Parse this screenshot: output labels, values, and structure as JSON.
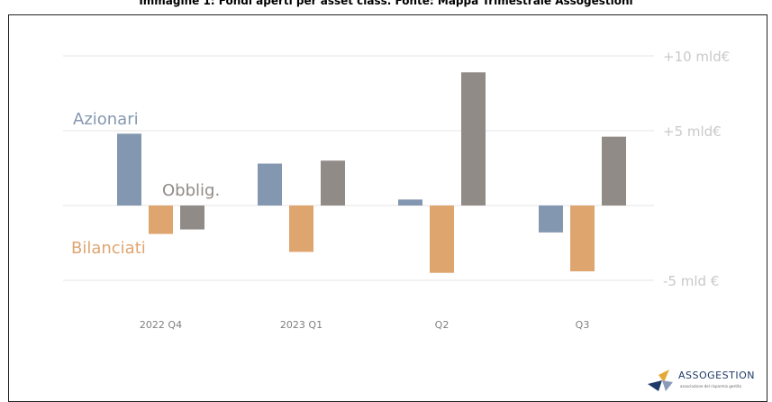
{
  "title": "Immagine 1: Fondi aperti per asset class. Fonte: Mappa Trimestrale Assogestioni",
  "chart_data": {
    "type": "bar",
    "categories": [
      "2022 Q4",
      "2023 Q1",
      "Q2",
      "Q3"
    ],
    "series": [
      {
        "name": "Azionari",
        "color": "#8497b0",
        "values": [
          4.8,
          2.8,
          0.4,
          -1.8
        ]
      },
      {
        "name": "Bilanciati",
        "color": "#dea56f",
        "values": [
          -1.9,
          -3.1,
          -4.5,
          -4.4
        ]
      },
      {
        "name": "Obblig.",
        "color": "#918b88",
        "values": [
          -1.6,
          3.0,
          8.9,
          4.6
        ]
      }
    ],
    "ytick_labels": [
      "+10 mld€",
      "+5 mld€",
      "-5 mld €"
    ],
    "yticks": [
      10,
      5,
      -5
    ],
    "ylim": [
      -5,
      10
    ],
    "grid": true,
    "legend": "inline labels next to bars"
  },
  "logo": {
    "name": "ASSOGESTION",
    "subtitle": "associazione del risparmio gestito"
  }
}
